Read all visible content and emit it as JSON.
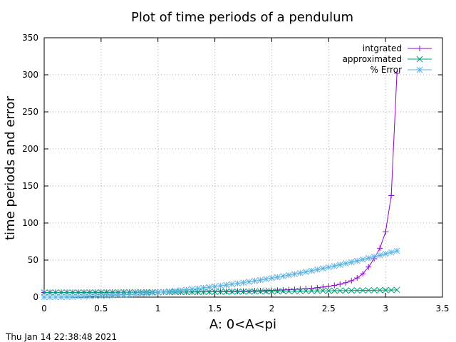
{
  "chart_data": {
    "type": "line",
    "title": "Plot of time periods of a pendulum",
    "xlabel": "A: 0<A<pi",
    "ylabel": "time periods and error",
    "xlim": [
      0,
      3.5
    ],
    "ylim": [
      0,
      350
    ],
    "xticks": [
      "0",
      "0.5",
      "1",
      "1.5",
      "2",
      "2.5",
      "3",
      "3.5"
    ],
    "yticks": [
      "0",
      "50",
      "100",
      "150",
      "200",
      "250",
      "300",
      "350"
    ],
    "grid": true,
    "legend_position": "top-right",
    "x": [
      0.0,
      0.05,
      0.1,
      0.15,
      0.2,
      0.25,
      0.3,
      0.35,
      0.4,
      0.45,
      0.5,
      0.55,
      0.6,
      0.65,
      0.7,
      0.75,
      0.8,
      0.85,
      0.9,
      0.95,
      1.0,
      1.05,
      1.1,
      1.15,
      1.2,
      1.25,
      1.3,
      1.35,
      1.4,
      1.45,
      1.5,
      1.55,
      1.6,
      1.65,
      1.7,
      1.75,
      1.8,
      1.85,
      1.9,
      1.95,
      2.0,
      2.05,
      2.1,
      2.15,
      2.2,
      2.25,
      2.3,
      2.35,
      2.4,
      2.45,
      2.5,
      2.55,
      2.6,
      2.65,
      2.7,
      2.75,
      2.8,
      2.85,
      2.9,
      2.95,
      3.0,
      3.05,
      3.1
    ],
    "series": [
      {
        "name": "intgrated",
        "color": "#9400d3",
        "marker": "plus",
        "values": [
          6.28,
          6.28,
          6.29,
          6.29,
          6.3,
          6.31,
          6.32,
          6.33,
          6.35,
          6.36,
          6.38,
          6.4,
          6.43,
          6.45,
          6.48,
          6.51,
          6.54,
          6.58,
          6.62,
          6.66,
          6.71,
          6.75,
          6.81,
          6.86,
          6.93,
          6.99,
          7.06,
          7.14,
          7.23,
          7.32,
          7.42,
          7.53,
          7.65,
          7.78,
          7.92,
          8.07,
          8.24,
          8.43,
          8.63,
          8.86,
          9.11,
          9.39,
          9.7,
          10.05,
          10.45,
          10.9,
          11.42,
          12.03,
          12.74,
          13.58,
          14.6,
          15.85,
          17.41,
          19.42,
          22.09,
          25.83,
          31.42,
          40.6,
          52.0,
          66.0,
          88.0,
          137.0,
          302.0
        ]
      },
      {
        "name": "approximated",
        "color": "#009e73",
        "marker": "cross",
        "values": [
          6.28,
          6.28,
          6.29,
          6.29,
          6.3,
          6.31,
          6.32,
          6.33,
          6.35,
          6.36,
          6.38,
          6.4,
          6.42,
          6.45,
          6.47,
          6.5,
          6.53,
          6.56,
          6.6,
          6.63,
          6.67,
          6.71,
          6.75,
          6.79,
          6.83,
          6.88,
          6.93,
          6.98,
          7.03,
          7.08,
          7.13,
          7.19,
          7.25,
          7.31,
          7.37,
          7.43,
          7.5,
          7.56,
          7.63,
          7.7,
          7.77,
          7.84,
          7.91,
          7.99,
          8.06,
          8.14,
          8.22,
          8.3,
          8.38,
          8.46,
          8.55,
          8.63,
          8.72,
          8.81,
          8.9,
          8.99,
          9.08,
          9.18,
          9.27,
          9.37,
          9.47,
          9.57,
          9.67
        ]
      },
      {
        "name": "% Error",
        "color": "#56b4e9",
        "marker": "star",
        "values": [
          0.0,
          0.02,
          0.06,
          0.14,
          0.25,
          0.39,
          0.56,
          0.77,
          1.0,
          1.27,
          1.57,
          1.9,
          2.27,
          2.66,
          3.09,
          3.55,
          4.04,
          4.57,
          5.12,
          5.71,
          6.33,
          6.99,
          7.67,
          8.39,
          9.14,
          9.92,
          10.74,
          11.59,
          12.47,
          13.38,
          14.33,
          15.31,
          16.32,
          17.37,
          18.45,
          19.56,
          20.71,
          21.89,
          23.1,
          24.35,
          25.63,
          26.95,
          28.29,
          29.68,
          31.09,
          32.54,
          34.03,
          35.55,
          37.1,
          38.69,
          40.31,
          41.96,
          43.65,
          45.37,
          47.13,
          48.92,
          50.75,
          52.61,
          54.5,
          56.43,
          58.4,
          60.4,
          62.43
        ]
      }
    ]
  },
  "footer": {
    "timestamp": "Thu Jan 14 22:38:48 2021"
  }
}
